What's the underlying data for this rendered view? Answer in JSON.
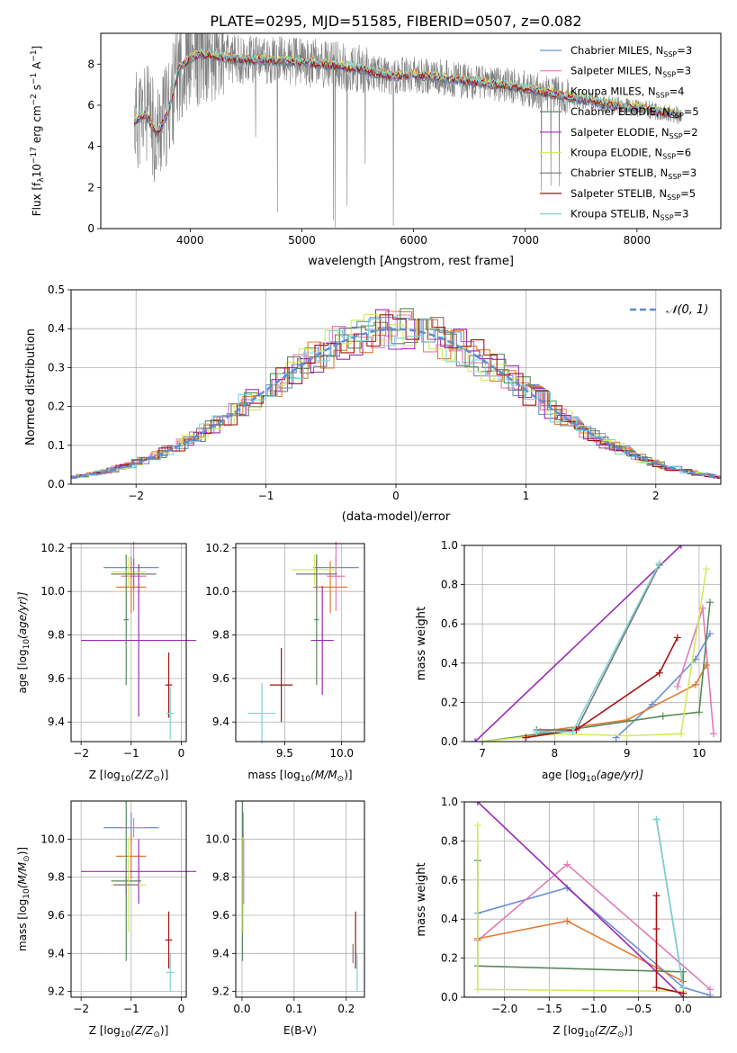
{
  "figure": {
    "title": "PLATE=0295, MJD=51585, FIBERID=0507, z=0.082"
  },
  "colors": {
    "Chabrier MILES": "#6a8fd6",
    "Salpeter MILES": "#e07bb8",
    "Kroupa MILES": "#e07b30",
    "Chabrier ELODIE": "#5a8a5a",
    "Salpeter ELODIE": "#9b2bb5",
    "Kroupa ELODIE": "#d4ea5a",
    "Chabrier STELIB": "#777777",
    "Salpeter STELIB": "#a81010",
    "Kroupa STELIB": "#7dd3d3",
    "data": "#808080",
    "normal": "#5b8ed6"
  },
  "chart_data": [
    {
      "id": "spectrum",
      "type": "line",
      "xlabel": "wavelength [Angstrom, rest frame]",
      "ylabel": "Flux [f",
      "ylabel_sub": "λ",
      "ylabel_rest": "10",
      "ylabel_sup1": "−17",
      "ylabel_mid": " erg cm",
      "ylabel_sup2": "−2",
      "ylabel_mid2": " s",
      "ylabel_sup3": "−1",
      "ylabel_mid3": " A",
      "ylabel_sup4": "−1",
      "ylabel_end": "]",
      "xlim": [
        3200,
        8750
      ],
      "ylim": [
        0,
        9.5
      ],
      "xticks": [
        4000,
        5000,
        6000,
        7000,
        8000
      ],
      "yticks": [
        0,
        2,
        4,
        6,
        8
      ],
      "legend_position": "top-right",
      "legend": [
        {
          "model": "Chabrier MILES",
          "label": "Chabrier MILES, N",
          "sub": "SSP",
          "value": "=3"
        },
        {
          "model": "Salpeter MILES",
          "label": "Salpeter MILES, N",
          "sub": "SSP",
          "value": "=3"
        },
        {
          "model": "Kroupa MILES",
          "label": "Kroupa MILES, N",
          "sub": "SSP",
          "value": "=4"
        },
        {
          "model": "Chabrier ELODIE",
          "label": "Chabrier ELODIE, N",
          "sub": "SSP",
          "value": "=5"
        },
        {
          "model": "Salpeter ELODIE",
          "label": "Salpeter ELODIE, N",
          "sub": "SSP",
          "value": "=2"
        },
        {
          "model": "Kroupa ELODIE",
          "label": "Kroupa ELODIE, N",
          "sub": "SSP",
          "value": "=6"
        },
        {
          "model": "Chabrier STELIB",
          "label": "Chabrier STELIB, N",
          "sub": "SSP",
          "value": "=3"
        },
        {
          "model": "Salpeter STELIB",
          "label": "Salpeter STELIB, N",
          "sub": "SSP",
          "value": "=5"
        },
        {
          "model": "Kroupa STELIB",
          "label": "Kroupa STELIB, N",
          "sub": "SSP",
          "value": "=3"
        }
      ],
      "continuum": {
        "x": [
          3500,
          3600,
          3700,
          3800,
          3900,
          4000,
          4100,
          4200,
          4300,
          4500,
          4700,
          5000,
          5200,
          5500,
          5800,
          6000,
          6300,
          6600,
          6900,
          7200,
          7500,
          7800,
          8100,
          8400
        ],
        "y": [
          5.2,
          5.6,
          4.6,
          5.6,
          7.8,
          8.3,
          8.5,
          8.4,
          8.3,
          8.2,
          8.2,
          8.1,
          8.0,
          7.8,
          7.4,
          7.5,
          7.3,
          7.1,
          6.9,
          6.6,
          6.3,
          6.0,
          5.8,
          5.5
        ]
      }
    },
    {
      "id": "residuals",
      "type": "line",
      "xlabel": "(data-model)/error",
      "ylabel": "Normed distribution",
      "xlim": [
        -2.5,
        2.5
      ],
      "ylim": [
        0,
        0.5
      ],
      "xticks": [
        -2,
        -1,
        0,
        1,
        2
      ],
      "yticks": [
        0.0,
        0.1,
        0.2,
        0.3,
        0.4,
        0.5
      ],
      "legend_position": "top-right",
      "legend_label": "𝒩(0, 1)",
      "normal": {
        "mean": 0,
        "sigma": 1
      }
    },
    {
      "id": "age-vs-Z",
      "type": "scatter",
      "xlabel": "Z [log",
      "xlabel_sub": "10",
      "xlabel_rest": "(Z/Z",
      "xlabel_sub2": "⊙",
      "xlabel_end": ")]",
      "ylabel": "age  [log",
      "ylabel_sub": "10",
      "ylabel_rest": "(age/yr)]",
      "xlim": [
        -2.2,
        0.1
      ],
      "ylim": [
        9.31,
        10.22
      ],
      "xticks": [
        -2,
        -1,
        0
      ],
      "yticks": [
        9.4,
        9.6,
        9.8,
        10.0,
        10.2
      ],
      "points": [
        {
          "model": "Chabrier MILES",
          "x": -1.0,
          "y": 10.11,
          "xerr": 0.55,
          "yerr": 0.05
        },
        {
          "model": "Salpeter MILES",
          "x": -0.95,
          "y": 10.07,
          "xerr": 0.25,
          "yerr": 0.16
        },
        {
          "model": "Kroupa MILES",
          "x": -1.0,
          "y": 10.02,
          "xerr": 0.3,
          "yerr": 0.12
        },
        {
          "model": "Chabrier ELODIE",
          "x": -1.1,
          "y": 9.87,
          "xerr": 0.05,
          "yerr": 0.3
        },
        {
          "model": "Salpeter ELODIE",
          "x": -0.85,
          "y": 9.775,
          "xerr": 1.15,
          "yerr": 0.35
        },
        {
          "model": "Kroupa ELODIE",
          "x": -1.05,
          "y": 10.09,
          "xerr": 0.35,
          "yerr": 0.07
        },
        {
          "model": "Chabrier STELIB",
          "x": -0.95,
          "y": 10.08,
          "xerr": 0.45,
          "yerr": 0.07
        },
        {
          "model": "Salpeter STELIB",
          "x": -0.25,
          "y": 9.57,
          "xerr": 0.07,
          "yerr": 0.15
        },
        {
          "model": "Kroupa STELIB",
          "x": -0.22,
          "y": 9.44,
          "xerr": 0.08,
          "yerr": 0.12
        }
      ]
    },
    {
      "id": "age-vs-mass",
      "type": "scatter",
      "xlabel": "mass [log",
      "xlabel_sub": "10",
      "xlabel_rest": "(M/M",
      "xlabel_sub2": "⊙",
      "xlabel_end": ")]",
      "xlim": [
        9.07,
        10.2
      ],
      "ylim": [
        9.31,
        10.22
      ],
      "xticks": [
        9.5,
        10.0
      ],
      "yticks": [
        9.4,
        9.6,
        9.8,
        10.0,
        10.2
      ],
      "points": [
        {
          "model": "Chabrier MILES",
          "x": 9.95,
          "y": 10.11,
          "xerr": 0.2,
          "yerr": 0.05
        },
        {
          "model": "Salpeter MILES",
          "x": 9.95,
          "y": 10.07,
          "xerr": 0.08,
          "yerr": 0.16
        },
        {
          "model": "Kroupa MILES",
          "x": 9.9,
          "y": 10.02,
          "xerr": 0.15,
          "yerr": 0.12
        },
        {
          "model": "Chabrier ELODIE",
          "x": 9.78,
          "y": 9.87,
          "xerr": 0.02,
          "yerr": 0.3
        },
        {
          "model": "Salpeter ELODIE",
          "x": 9.83,
          "y": 9.775,
          "xerr": 0.1,
          "yerr": 0.25
        },
        {
          "model": "Kroupa ELODIE",
          "x": 9.76,
          "y": 10.1,
          "xerr": 0.2,
          "yerr": 0.07
        },
        {
          "model": "Chabrier STELIB",
          "x": 9.78,
          "y": 10.08,
          "xerr": 0.18,
          "yerr": 0.07
        },
        {
          "model": "Salpeter STELIB",
          "x": 9.47,
          "y": 9.57,
          "xerr": 0.1,
          "yerr": 0.17
        },
        {
          "model": "Kroupa STELIB",
          "x": 9.3,
          "y": 9.44,
          "xerr": 0.12,
          "yerr": 0.14
        }
      ]
    },
    {
      "id": "weight-vs-age",
      "type": "line",
      "xlabel": "age  [log",
      "xlabel_sub": "10",
      "xlabel_rest": "(age/yr)]",
      "ylabel": "mass weight",
      "xlim": [
        6.75,
        10.3
      ],
      "ylim": [
        0,
        1.0
      ],
      "xticks": [
        7,
        8,
        9,
        10
      ],
      "yticks": [
        0.0,
        0.2,
        0.4,
        0.6,
        0.8,
        1.0
      ],
      "series": [
        {
          "model": "Chabrier MILES",
          "x": [
            8.85,
            9.35,
            9.95,
            10.15
          ],
          "y": [
            0.02,
            0.19,
            0.42,
            0.55
          ]
        },
        {
          "model": "Salpeter MILES",
          "x": [
            9.7,
            10.05,
            10.2
          ],
          "y": [
            0.28,
            0.68,
            0.04
          ]
        },
        {
          "model": "Kroupa MILES",
          "x": [
            7.8,
            9.0,
            9.95,
            10.1
          ],
          "y": [
            0.05,
            0.11,
            0.29,
            0.39
          ]
        },
        {
          "model": "Chabrier ELODIE",
          "x": [
            7.0,
            8.0,
            9.5,
            10.0,
            10.15
          ],
          "y": [
            0.0,
            0.05,
            0.13,
            0.15,
            0.71
          ]
        },
        {
          "model": "Salpeter ELODIE",
          "x": [
            6.9,
            9.75
          ],
          "y": [
            0.0,
            1.0
          ]
        },
        {
          "model": "Kroupa ELODIE",
          "x": [
            7.0,
            8.0,
            9.0,
            9.75,
            10.1
          ],
          "y": [
            0.0,
            0.04,
            0.03,
            0.04,
            0.88
          ]
        },
        {
          "model": "Chabrier STELIB",
          "x": [
            7.75,
            8.3,
            9.45
          ],
          "y": [
            0.06,
            0.06,
            0.9
          ]
        },
        {
          "model": "Salpeter STELIB",
          "x": [
            7.6,
            8.3,
            9.45,
            9.7
          ],
          "y": [
            0.02,
            0.06,
            0.35,
            0.53
          ]
        },
        {
          "model": "Kroupa STELIB",
          "x": [
            7.75,
            8.25,
            9.45
          ],
          "y": [
            0.05,
            0.05,
            0.91
          ]
        }
      ]
    },
    {
      "id": "mass-vs-Z",
      "type": "scatter",
      "xlabel": "Z [log",
      "xlabel_sub": "10",
      "xlabel_rest": "(Z/Z",
      "xlabel_sub2": "⊙",
      "xlabel_end": ")]",
      "ylabel": "mass [log",
      "ylabel_sub": "10",
      "ylabel_rest": "(M/M",
      "ylabel_sub2": "⊙",
      "ylabel_end": ")]",
      "xlim": [
        -2.2,
        0.1
      ],
      "ylim": [
        9.17,
        10.2
      ],
      "xticks": [
        -2,
        -1,
        0
      ],
      "yticks": [
        9.2,
        9.4,
        9.6,
        9.8,
        10.0
      ],
      "points": [
        {
          "model": "Chabrier MILES",
          "x": -1.0,
          "y": 10.06,
          "xerr": 0.55,
          "yerr": 0.08
        },
        {
          "model": "Salpeter MILES",
          "x": -0.95,
          "y": 10.06,
          "xerr": 0.25,
          "yerr": 0.05
        },
        {
          "model": "Kroupa MILES",
          "x": -1.0,
          "y": 9.91,
          "xerr": 0.3,
          "yerr": 0.12
        },
        {
          "model": "Chabrier ELODIE",
          "x": -1.1,
          "y": 9.78,
          "xerr": 0.3,
          "yerr": 0.42
        },
        {
          "model": "Salpeter ELODIE",
          "x": -0.85,
          "y": 9.83,
          "xerr": 1.15,
          "yerr": 0.17
        },
        {
          "model": "Kroupa ELODIE",
          "x": -1.05,
          "y": 9.76,
          "xerr": 0.35,
          "yerr": 0.25
        },
        {
          "model": "Chabrier STELIB",
          "x": -1.1,
          "y": 9.76,
          "xerr": 0.25,
          "yerr": 0.05
        },
        {
          "model": "Salpeter STELIB",
          "x": -0.25,
          "y": 9.47,
          "xerr": 0.07,
          "yerr": 0.15
        },
        {
          "model": "Kroupa STELIB",
          "x": -0.22,
          "y": 9.3,
          "xerr": 0.08,
          "yerr": 0.1
        }
      ]
    },
    {
      "id": "mass-vs-ebv",
      "type": "scatter",
      "xlabel": "E(B-V)",
      "xlim": [
        -0.012,
        0.235
      ],
      "ylim": [
        9.17,
        10.2
      ],
      "xticks": [
        0.0,
        0.1,
        0.2
      ],
      "yticks": [
        9.2,
        9.4,
        9.6,
        9.8,
        10.0
      ],
      "points": [
        {
          "model": "Chabrier MILES",
          "x": 0.002,
          "y": 10.06,
          "xerr": 0.0,
          "yerr": 0.08
        },
        {
          "model": "Salpeter MILES",
          "x": 0.002,
          "y": 10.06,
          "xerr": 0.0,
          "yerr": 0.05
        },
        {
          "model": "Kroupa MILES",
          "x": 0.002,
          "y": 9.91,
          "xerr": 0.0,
          "yerr": 0.12
        },
        {
          "model": "Chabrier ELODIE",
          "x": 0.001,
          "y": 9.78,
          "xerr": 0.0,
          "yerr": 0.42
        },
        {
          "model": "Salpeter ELODIE",
          "x": 0.003,
          "y": 9.83,
          "xerr": 0.0,
          "yerr": 0.17
        },
        {
          "model": "Kroupa ELODIE",
          "x": 0.002,
          "y": 9.76,
          "xerr": 0.0,
          "yerr": 0.25
        },
        {
          "model": "Chabrier STELIB",
          "x": 0.213,
          "y": 9.4,
          "xerr": 0.0,
          "yerr": 0.05
        },
        {
          "model": "Salpeter STELIB",
          "x": 0.218,
          "y": 9.47,
          "xerr": 0.0,
          "yerr": 0.15
        },
        {
          "model": "Kroupa STELIB",
          "x": 0.221,
          "y": 9.3,
          "xerr": 0.0,
          "yerr": 0.1
        }
      ]
    },
    {
      "id": "weight-vs-Z",
      "type": "line",
      "xlabel": "Z [log",
      "xlabel_sub": "10",
      "xlabel_rest": "(Z/Z",
      "xlabel_sub2": "⊙",
      "xlabel_end": ")]",
      "ylabel": "mass weight",
      "xlim": [
        -2.45,
        0.42
      ],
      "ylim": [
        0,
        1.0
      ],
      "xticks": [
        -2.0,
        -1.5,
        -1.0,
        -0.5,
        0.0
      ],
      "yticks": [
        0.0,
        0.2,
        0.4,
        0.6,
        0.8,
        1.0
      ],
      "series": [
        {
          "model": "Chabrier MILES",
          "x": [
            -2.3,
            -1.3,
            0.0,
            0.3
          ],
          "y": [
            0.43,
            0.56,
            0.05,
            0.01
          ]
        },
        {
          "model": "Salpeter MILES",
          "x": [
            -2.3,
            -1.3,
            0.3
          ],
          "y": [
            0.29,
            0.68,
            0.04
          ]
        },
        {
          "model": "Kroupa MILES",
          "x": [
            -2.3,
            -1.3,
            0.0
          ],
          "y": [
            0.3,
            0.39,
            0.08
          ]
        },
        {
          "model": "Chabrier ELODIE",
          "x": [
            -2.3,
            -2.3,
            0.0,
            0.0
          ],
          "y": [
            0.7,
            0.16,
            0.13,
            0.02
          ]
        },
        {
          "model": "Salpeter ELODIE",
          "x": [
            -2.3,
            0.0
          ],
          "y": [
            1.0,
            0.0
          ]
        },
        {
          "model": "Kroupa ELODIE",
          "x": [
            -2.3,
            -2.3,
            0.0,
            0.0
          ],
          "y": [
            0.88,
            0.04,
            0.03,
            0.0
          ]
        },
        {
          "model": "Chabrier STELIB",
          "x": [
            -0.3,
            0.0
          ],
          "y": [
            0.91,
            0.05
          ]
        },
        {
          "model": "Salpeter STELIB",
          "x": [
            -0.3,
            -0.3,
            -0.3,
            0.0
          ],
          "y": [
            0.52,
            0.35,
            0.05,
            0.02
          ]
        },
        {
          "model": "Kroupa STELIB",
          "x": [
            -0.3,
            0.0
          ],
          "y": [
            0.91,
            0.05
          ]
        }
      ]
    }
  ]
}
